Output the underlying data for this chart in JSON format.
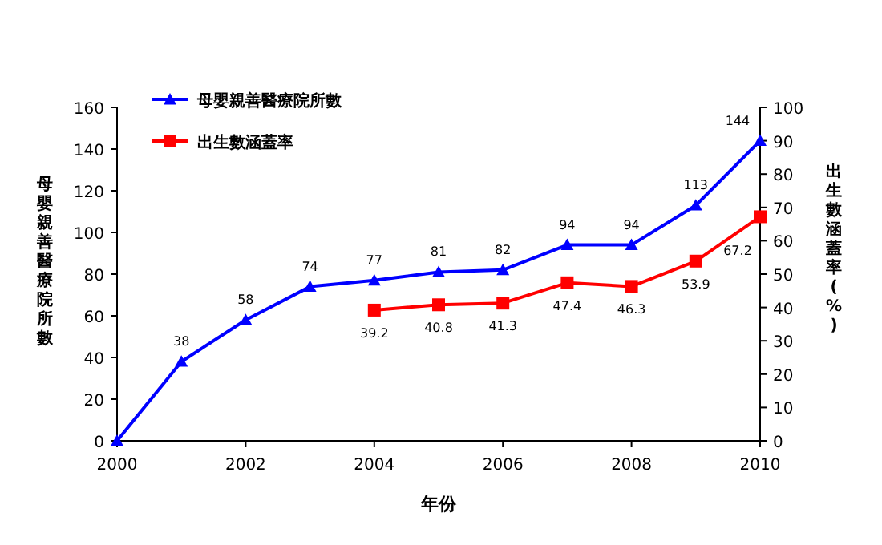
{
  "chart_data": {
    "type": "line",
    "xlabel": "年份",
    "ylabel": "母嬰親善醫療院所數",
    "y2label": "出生數涵蓋率(%)",
    "x": [
      2000,
      2001,
      2002,
      2003,
      2004,
      2005,
      2006,
      2007,
      2008,
      2009,
      2010
    ],
    "xlim": [
      2000,
      2010
    ],
    "xticks": [
      2000,
      2002,
      2004,
      2006,
      2008,
      2010
    ],
    "ylim": [
      0,
      160
    ],
    "yticks": [
      0,
      20,
      40,
      60,
      80,
      100,
      120,
      140,
      160
    ],
    "y2lim": [
      0,
      100
    ],
    "y2ticks": [
      0,
      10,
      20,
      30,
      40,
      50,
      60,
      70,
      80,
      90,
      100
    ],
    "series": [
      {
        "name": "母嬰親善醫療院所數",
        "color": "#0000ff",
        "marker": "triangle",
        "values": [
          0,
          38,
          58,
          74,
          77,
          81,
          82,
          94,
          94,
          113,
          144
        ],
        "value_labels": [
          null,
          "38",
          "58",
          "74",
          "77",
          "81",
          "82",
          "94",
          "94",
          "113",
          "144"
        ]
      },
      {
        "name": "出生數涵蓋率",
        "color": "#ff0000",
        "marker": "square",
        "axis": "y2",
        "x": [
          2004,
          2005,
          2006,
          2007,
          2008,
          2009,
          2010
        ],
        "values": [
          39.2,
          40.8,
          41.3,
          47.4,
          46.3,
          53.9,
          67.2
        ],
        "value_labels": [
          "39.2",
          "40.8",
          "41.3",
          "47.4",
          "46.3",
          "53.9",
          "67.2"
        ]
      }
    ],
    "legend": "top left",
    "grid": false
  }
}
